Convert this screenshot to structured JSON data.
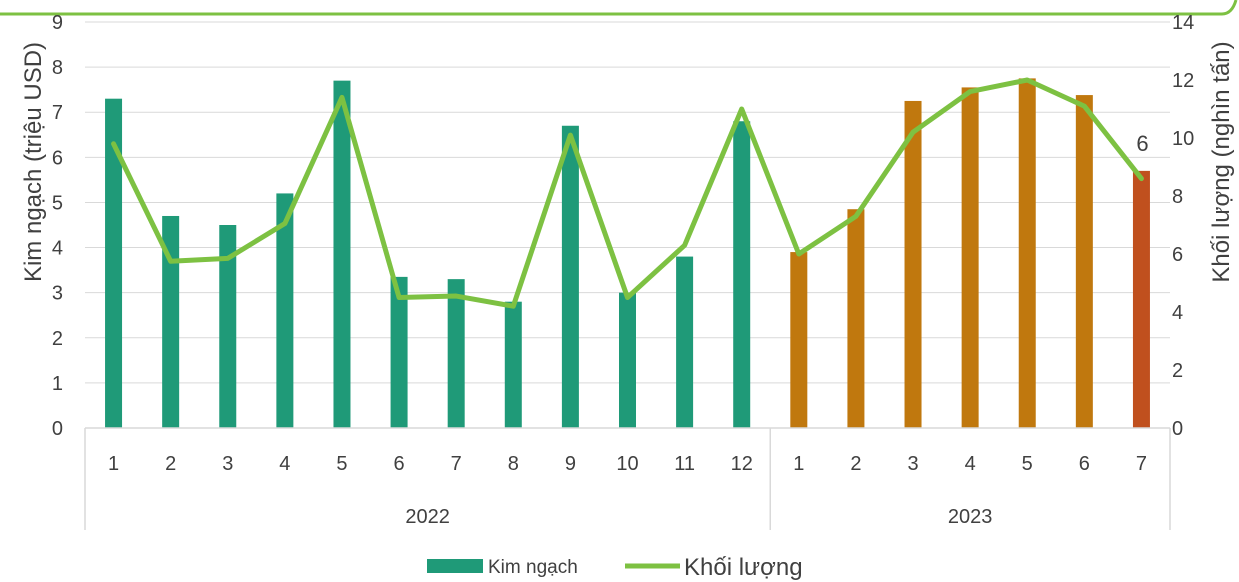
{
  "chart_data": {
    "type": "bar",
    "categories": [
      "1",
      "2",
      "3",
      "4",
      "5",
      "6",
      "7",
      "8",
      "9",
      "10",
      "11",
      "12",
      "1",
      "2",
      "3",
      "4",
      "5",
      "6",
      "7"
    ],
    "groups": [
      {
        "label": "2022",
        "count": 12
      },
      {
        "label": "2023",
        "count": 7
      }
    ],
    "series": [
      {
        "name": "Kim ngạch",
        "type": "bar",
        "axis": "left",
        "values": [
          7.3,
          4.7,
          4.5,
          5.2,
          7.7,
          3.35,
          3.3,
          2.8,
          6.7,
          3.0,
          3.8,
          6.8,
          3.9,
          4.85,
          7.25,
          7.55,
          7.75,
          7.38,
          5.7
        ],
        "colors": [
          "#1f9a78",
          "#1f9a78",
          "#1f9a78",
          "#1f9a78",
          "#1f9a78",
          "#1f9a78",
          "#1f9a78",
          "#1f9a78",
          "#1f9a78",
          "#1f9a78",
          "#1f9a78",
          "#1f9a78",
          "#c0780e",
          "#c0780e",
          "#c0780e",
          "#c0780e",
          "#c0780e",
          "#c0780e",
          "#c0501e"
        ]
      },
      {
        "name": "Khối lượng",
        "type": "line",
        "axis": "right",
        "color": "#7dc142",
        "values": [
          9.8,
          5.75,
          5.85,
          7.05,
          11.4,
          4.5,
          4.55,
          4.2,
          10.1,
          4.5,
          6.3,
          11.0,
          6.0,
          7.3,
          10.2,
          11.6,
          12.0,
          11.1,
          8.6
        ]
      }
    ],
    "data_labels": [
      {
        "index": 18,
        "series": "Kim ngạch",
        "text": "6"
      }
    ],
    "ylabel": "Kim ngạch (triệu USD)",
    "y2label": "Khối lượng (nghìn tấn)",
    "ylim": [
      0,
      9
    ],
    "y2lim": [
      0,
      14
    ],
    "yticks": [
      "0",
      "1",
      "2",
      "3",
      "4",
      "5",
      "6",
      "7",
      "8",
      "9"
    ],
    "y2ticks": [
      "0",
      "2",
      "4",
      "6",
      "8",
      "10",
      "12",
      "14"
    ],
    "grid": true,
    "legend": "bottom",
    "colors": {
      "bar_2022": "#1f9a78",
      "bar_2023": "#c0780e",
      "bar_highlight": "#c0501e",
      "line": "#7dc142",
      "gridline": "#d9d9d9",
      "text": "#404040"
    }
  }
}
